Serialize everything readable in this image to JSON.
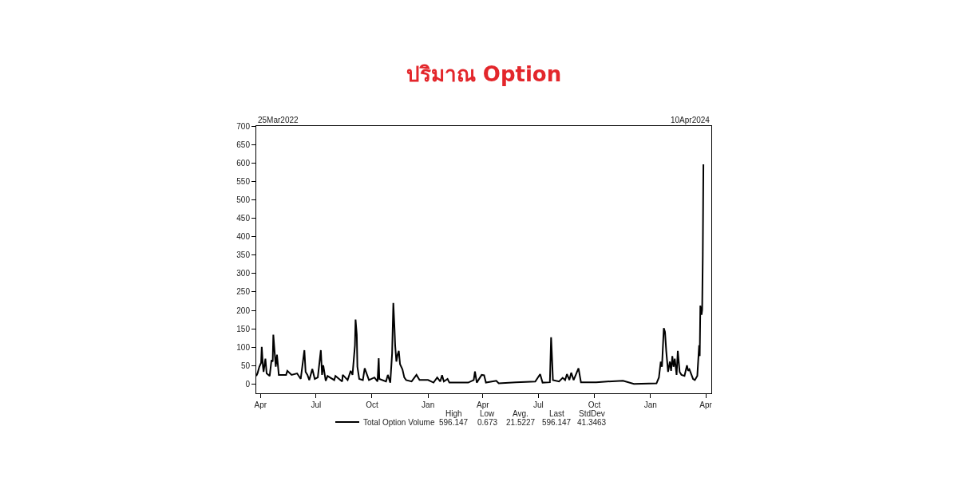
{
  "chart_data": {
    "type": "line",
    "title": "ปริมาณ Option",
    "x": [
      "2022-03-25",
      "2022-03-27",
      "2022-03-30",
      "2022-04-02",
      "2022-04-03",
      "2022-04-05",
      "2022-04-06",
      "2022-04-09",
      "2022-04-11",
      "2022-04-16",
      "2022-04-19",
      "2022-04-21",
      "2022-04-22",
      "2022-04-24",
      "2022-04-26",
      "2022-04-28",
      "2022-05-01",
      "2022-05-13",
      "2022-05-15",
      "2022-05-22",
      "2022-05-31",
      "2022-06-06",
      "2022-06-12",
      "2022-06-14",
      "2022-06-17",
      "2022-06-20",
      "2022-06-25",
      "2022-06-29",
      "2022-07-04",
      "2022-07-09",
      "2022-07-11",
      "2022-07-13",
      "2022-07-17",
      "2022-07-20",
      "2022-07-31",
      "2022-08-02",
      "2022-08-13",
      "2022-08-14",
      "2022-08-22",
      "2022-08-27",
      "2022-08-30",
      "2022-09-03",
      "2022-09-04",
      "2022-09-06",
      "2022-09-07",
      "2022-09-10",
      "2022-09-16",
      "2022-09-19",
      "2022-09-26",
      "2022-10-05",
      "2022-10-10",
      "2022-10-12",
      "2022-10-13",
      "2022-10-24",
      "2022-10-27",
      "2022-10-31",
      "2022-11-03",
      "2022-11-05",
      "2022-11-07",
      "2022-11-08",
      "2022-11-10",
      "2022-11-12",
      "2022-11-14",
      "2022-11-16",
      "2022-11-20",
      "2022-11-23",
      "2022-11-26",
      "2022-12-05",
      "2022-12-13",
      "2022-12-18",
      "2023-01-01",
      "2023-01-10",
      "2023-01-16",
      "2023-01-21",
      "2023-01-24",
      "2023-01-27",
      "2023-02-02",
      "2023-02-05",
      "2023-02-23",
      "2023-03-08",
      "2023-03-17",
      "2023-03-19",
      "2023-03-22",
      "2023-03-30",
      "2023-04-03",
      "2023-04-06",
      "2023-04-23",
      "2023-04-27",
      "2023-05-25",
      "2023-06-26",
      "2023-07-04",
      "2023-07-08",
      "2023-07-20",
      "2023-07-22",
      "2023-07-23",
      "2023-07-25",
      "2023-08-04",
      "2023-08-10",
      "2023-08-14",
      "2023-08-17",
      "2023-08-21",
      "2023-08-24",
      "2023-08-28",
      "2023-09-05",
      "2023-09-09",
      "2023-10-04",
      "2023-10-22",
      "2023-11-17",
      "2023-12-05",
      "2024-01-11",
      "2024-01-15",
      "2024-01-18",
      "2024-01-20",
      "2024-01-23",
      "2024-01-25",
      "2024-01-27",
      "2024-01-30",
      "2024-02-02",
      "2024-02-04",
      "2024-02-06",
      "2024-02-08",
      "2024-02-10",
      "2024-02-13",
      "2024-02-15",
      "2024-02-18",
      "2024-02-21",
      "2024-02-26",
      "2024-03-01",
      "2024-03-03",
      "2024-03-05",
      "2024-03-11",
      "2024-03-14",
      "2024-03-18",
      "2024-03-21",
      "2024-03-22",
      "2024-03-23",
      "2024-03-25",
      "2024-03-26",
      "2024-03-27",
      "2024-03-28"
    ],
    "series": [
      {
        "name": "Total Option Volume",
        "color": "#000000",
        "values": [
          22,
          29,
          47,
          58,
          101,
          47,
          33,
          69,
          29,
          22,
          65,
          61,
          134,
          90,
          47,
          80,
          25,
          25,
          36,
          25,
          29,
          14,
          92,
          33,
          25,
          11,
          41,
          14,
          18,
          92,
          25,
          51,
          9,
          22,
          11,
          22,
          7,
          25,
          11,
          36,
          25,
          105,
          175,
          134,
          47,
          14,
          11,
          43,
          11,
          18,
          7,
          70,
          14,
          7,
          25,
          4,
          83,
          220,
          148,
          105,
          61,
          80,
          90,
          54,
          40,
          18,
          11,
          7,
          25,
          11,
          11,
          4,
          18,
          7,
          24,
          7,
          14,
          4,
          4,
          4,
          11,
          34,
          4,
          25,
          24,
          4,
          9,
          2,
          5,
          7,
          27,
          4,
          5,
          127,
          90,
          11,
          7,
          17,
          11,
          27,
          11,
          31,
          11,
          43,
          5,
          5,
          7,
          9,
          0.673,
          2,
          18,
          61,
          47,
          152,
          141,
          90,
          33,
          61,
          36,
          76,
          47,
          69,
          25,
          90,
          33,
          25,
          22,
          51,
          36,
          40,
          14,
          11,
          22,
          105,
          76,
          213,
          188,
          202,
          351,
          596.147
        ]
      }
    ],
    "xlim": [
      "2022-03-25",
      "2024-04-10"
    ],
    "xticks": [
      {
        "value": "2022-04-01",
        "label": "Apr"
      },
      {
        "value": "2022-07-01",
        "label": "Jul"
      },
      {
        "value": "2022-10-01",
        "label": "Oct"
      },
      {
        "value": "2023-01-01",
        "label": "Jan"
      },
      {
        "value": "2023-04-01",
        "label": "Apr"
      },
      {
        "value": "2023-07-01",
        "label": "Jul"
      },
      {
        "value": "2023-10-01",
        "label": "Oct"
      },
      {
        "value": "2024-01-01",
        "label": "Jan"
      },
      {
        "value": "2024-04-01",
        "label": "Apr"
      }
    ],
    "ylim": [
      -25,
      700
    ],
    "yticks": [
      0,
      50,
      100,
      150,
      200,
      250,
      300,
      350,
      400,
      450,
      500,
      550,
      600,
      650,
      700
    ],
    "legend": "bottom",
    "marker": "none",
    "line_style": "solid",
    "annotations": [
      "25Mar2022",
      "10Apr2024",
      "High",
      "596.147",
      "Low",
      "0.673",
      "Avg.",
      "21.5227",
      "Last",
      "596.147",
      "StdDev",
      "41.3463"
    ]
  }
}
